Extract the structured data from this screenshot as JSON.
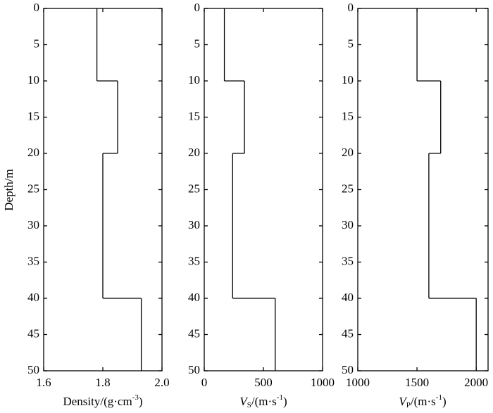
{
  "chart_data": [
    {
      "type": "step",
      "ylabel": "Depth/m",
      "xlabel": [
        "Density/(g·cm",
        "-3",
        ")"
      ],
      "depths": [
        0,
        10,
        20,
        40,
        50
      ],
      "values": [
        1.78,
        1.85,
        1.8,
        1.93
      ],
      "color": "#000000",
      "xlim": [
        1.6,
        2.0
      ],
      "xticks": [
        1.6,
        1.8,
        {
          "value": 2.0,
          "label": "2.0"
        }
      ],
      "ylim": [
        0,
        50
      ],
      "yticks": [
        0,
        5,
        10,
        15,
        20,
        25,
        30,
        35,
        40,
        45,
        50
      ]
    },
    {
      "type": "step",
      "xlabel": [
        "V",
        "S",
        "/(m·s",
        "-1",
        ")"
      ],
      "depths": [
        0,
        10,
        20,
        40,
        50
      ],
      "values": [
        170,
        340,
        240,
        600
      ],
      "color": "#000000",
      "xlim": [
        0,
        1000
      ],
      "xticks": [
        0,
        500,
        1000
      ],
      "ylim": [
        0,
        50
      ],
      "yticks": [
        0,
        5,
        10,
        15,
        20,
        25,
        30,
        35,
        40,
        45,
        50
      ]
    },
    {
      "type": "step",
      "xlabel": [
        "V",
        "P",
        "/(m·s",
        "-1",
        ")"
      ],
      "depths": [
        0,
        10,
        20,
        40,
        50
      ],
      "values": [
        1500,
        1700,
        1600,
        2000
      ],
      "color": "#000000",
      "xlim": [
        1000,
        2100
      ],
      "xticks": [
        1000,
        1500,
        2000
      ],
      "ylim": [
        0,
        50
      ],
      "yticks": [
        0,
        5,
        10,
        15,
        20,
        25,
        30,
        35,
        40,
        45,
        50
      ]
    }
  ]
}
